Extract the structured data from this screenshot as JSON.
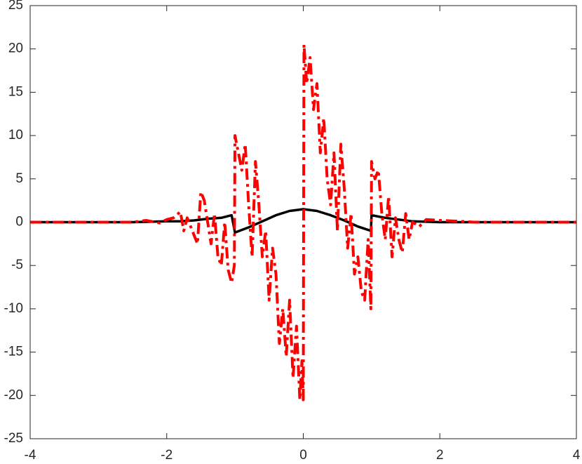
{
  "chart_data": {
    "type": "line",
    "xlim": [
      -4,
      4
    ],
    "xticks": [
      -4,
      -2,
      0,
      2,
      4
    ],
    "ylim": [
      -25,
      25
    ],
    "yticks": [
      -25,
      -20,
      -15,
      -10,
      -5,
      0,
      5,
      10,
      15,
      20,
      25
    ],
    "grid": false,
    "series": [
      {
        "color": "#000000",
        "style": "solid",
        "x": [
          -4,
          -2.5,
          -2,
          -1.8,
          -1.6,
          -1.4,
          -1.2,
          -1.05,
          -1.0,
          -0.8,
          -0.6,
          -0.4,
          -0.2,
          0,
          0.2,
          0.4,
          0.6,
          0.8,
          0.99,
          1.0,
          1.2,
          1.4,
          1.6,
          1.8,
          2.0,
          4
        ],
        "values": [
          0,
          0,
          0.1,
          0.1,
          0.2,
          0.4,
          0.5,
          0.8,
          -1.2,
          -0.6,
          0.1,
          0.8,
          1.3,
          1.5,
          1.3,
          0.8,
          0.2,
          -0.5,
          -1.0,
          0.8,
          0.5,
          0.3,
          0.1,
          0.05,
          0,
          0
        ]
      },
      {
        "color": "#ff0000",
        "style": "dashdot",
        "x": [
          -4,
          -2.5,
          -2.3,
          -2.1,
          -2.0,
          -1.9,
          -1.8,
          -1.75,
          -1.7,
          -1.55,
          -1.5,
          -1.45,
          -1.35,
          -1.3,
          -1.25,
          -1.2,
          -1.15,
          -1.1,
          -1.05,
          -1.01,
          -1.0,
          -0.95,
          -0.9,
          -0.85,
          -0.8,
          -0.75,
          -0.7,
          -0.65,
          -0.6,
          -0.55,
          -0.5,
          -0.45,
          -0.4,
          -0.35,
          -0.3,
          -0.25,
          -0.2,
          -0.15,
          -0.1,
          -0.05,
          -0.02,
          0,
          0.01,
          0.05,
          0.1,
          0.15,
          0.2,
          0.25,
          0.3,
          0.35,
          0.4,
          0.45,
          0.5,
          0.55,
          0.6,
          0.65,
          0.7,
          0.75,
          0.8,
          0.85,
          0.9,
          0.95,
          0.99,
          1.0,
          1.05,
          1.1,
          1.15,
          1.2,
          1.25,
          1.3,
          1.35,
          1.4,
          1.45,
          1.5,
          1.55,
          1.6,
          1.7,
          1.8,
          2.0,
          2.3,
          2.5,
          4
        ],
        "values": [
          0,
          0,
          0.2,
          -0.1,
          0.3,
          0.5,
          1.2,
          -1.0,
          0.5,
          -2.5,
          3.5,
          2.5,
          -2.5,
          1.0,
          -4,
          -5,
          0,
          -5.5,
          -7,
          -5,
          10,
          8,
          6,
          9,
          2,
          -4,
          7,
          2,
          -4,
          -1,
          -9,
          -3,
          -6,
          -14,
          -10,
          -15.5,
          -9,
          -18,
          -12,
          -20.5,
          -16,
          -20.5,
          20.5,
          16,
          19,
          13,
          16,
          8,
          12,
          5,
          2,
          8,
          -1,
          9,
          4,
          -3,
          1,
          -6,
          -4,
          -8,
          -9,
          -2,
          -10,
          7,
          5,
          6,
          1,
          -2,
          3,
          -4,
          0.5,
          -2,
          -3.5,
          1,
          -2,
          0,
          -0.5,
          0.3,
          0.2,
          0.1,
          0,
          0
        ]
      }
    ]
  }
}
